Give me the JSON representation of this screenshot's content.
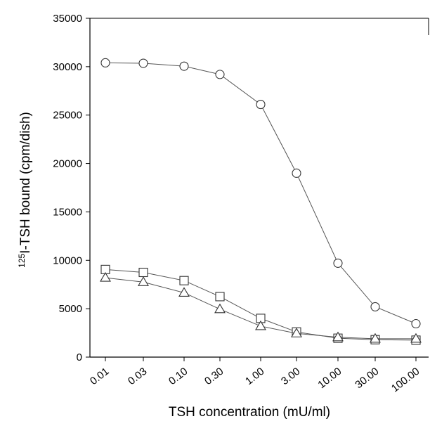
{
  "chart_data": {
    "type": "line",
    "title": "",
    "x_scale": "log",
    "categories": [
      "0.01",
      "0.03",
      "0.10",
      "0.30",
      "1.00",
      "3.00",
      "10.00",
      "30.00",
      "100.00"
    ],
    "x": [
      0.01,
      0.03,
      0.1,
      0.3,
      1.0,
      3.0,
      10.0,
      30.0,
      100.0
    ],
    "xlabel": "TSH concentration (mU/ml)",
    "ylabel_prefix": "125",
    "ylabel_main": "I-TSH bound (cpm/dish)",
    "ylim": [
      0,
      35000
    ],
    "yticks": [
      0,
      5000,
      10000,
      15000,
      20000,
      25000,
      30000,
      35000
    ],
    "grid": false,
    "legend": "none",
    "series": [
      {
        "marker": "circle",
        "values": [
          30400,
          30350,
          30050,
          29200,
          26100,
          19000,
          9700,
          5200,
          3450
        ]
      },
      {
        "marker": "square",
        "values": [
          9050,
          8750,
          7900,
          6250,
          4000,
          2600,
          1950,
          1800,
          1750
        ]
      },
      {
        "marker": "triangle",
        "values": [
          8200,
          7750,
          6650,
          4950,
          3200,
          2450,
          2050,
          1900,
          1900
        ]
      }
    ],
    "colors": {
      "line": "#555555",
      "marker_stroke": "#333333",
      "axis": "#000000"
    }
  }
}
